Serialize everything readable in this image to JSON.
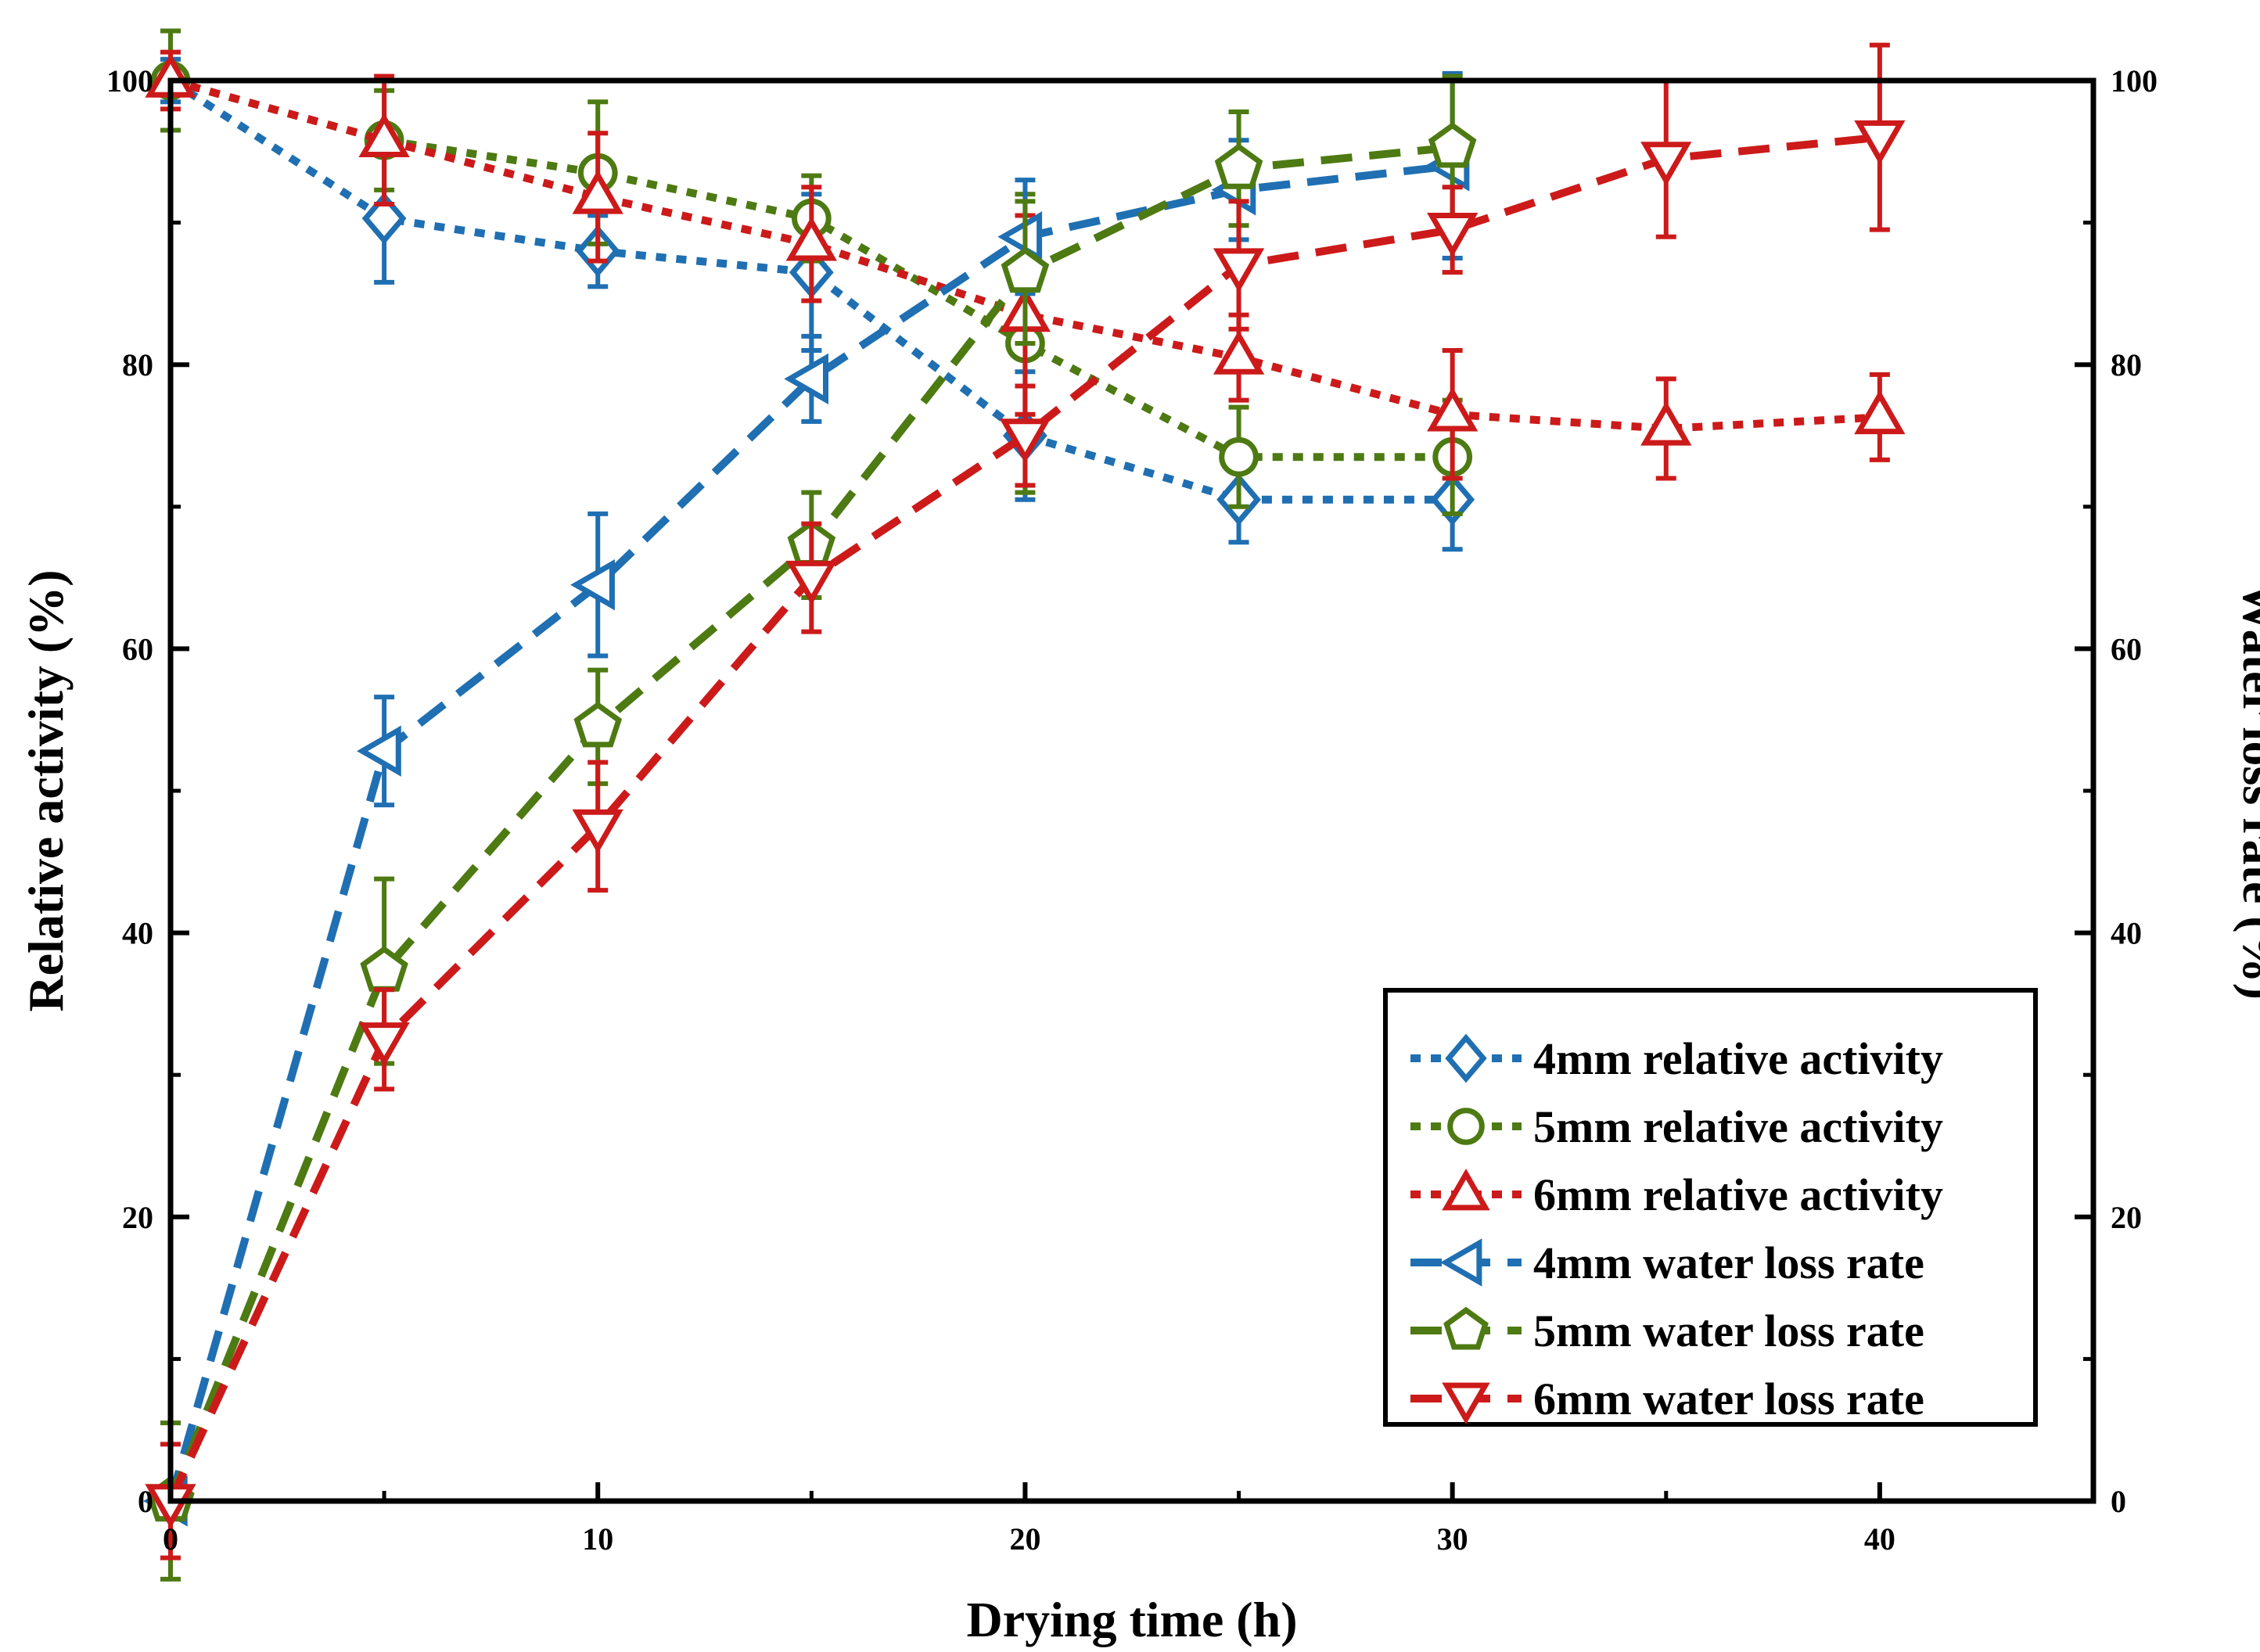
{
  "chart_data": {
    "type": "line",
    "xlabel": "Drying time (h)",
    "ylabel_left": "Relative activity (%)",
    "ylabel_right": "Water loss rate (%)",
    "xlim": [
      0,
      45
    ],
    "ylim_left": [
      0,
      100
    ],
    "ylim_right": [
      0,
      100
    ],
    "x_ticks": [
      0,
      10,
      20,
      30,
      40
    ],
    "y_ticks": [
      0,
      20,
      40,
      60,
      80,
      100
    ],
    "grid": false,
    "legend_position": "bottom-right",
    "series": [
      {
        "name": "4mm relative activity",
        "axis": "left",
        "color": "#1f6fb2",
        "marker": "diamond",
        "line": "dot",
        "x": [
          0,
          5,
          10,
          15,
          20,
          25,
          30
        ],
        "y": [
          100,
          90.3,
          88.0,
          86.5,
          75.0,
          70.5,
          70.5
        ],
        "err": [
          1.5,
          4.5,
          2.5,
          5.5,
          4.5,
          3.0,
          3.5
        ]
      },
      {
        "name": "5mm relative activity",
        "axis": "left",
        "color": "#4d7a12",
        "marker": "circle",
        "line": "dot",
        "x": [
          0,
          5,
          10,
          15,
          20,
          25,
          30
        ],
        "y": [
          100,
          95.8,
          93.5,
          90.3,
          81.5,
          73.5,
          73.5
        ],
        "err": [
          3.5,
          3.5,
          5.0,
          3.0,
          10.5,
          3.5,
          4.0
        ]
      },
      {
        "name": "6mm relative activity",
        "axis": "left",
        "color": "#cc1a1a",
        "marker": "triangle-up",
        "line": "dot",
        "x": [
          0,
          5,
          10,
          15,
          20,
          25,
          30,
          35,
          40
        ],
        "y": [
          100,
          95.8,
          91.8,
          88.5,
          83.5,
          80.5,
          76.5,
          75.5,
          76.3
        ],
        "err": [
          2.0,
          4.5,
          4.5,
          4.0,
          7.0,
          3.0,
          4.5,
          3.5,
          3.0
        ]
      },
      {
        "name": "4mm water loss rate",
        "axis": "right",
        "color": "#1f6fb2",
        "marker": "triangle-left",
        "line": "dash",
        "x": [
          0,
          5,
          10,
          15,
          20,
          25,
          30
        ],
        "y": [
          0,
          52.8,
          64.5,
          79.0,
          89.0,
          92.3,
          94.0
        ],
        "err": [
          0.5,
          3.8,
          5.0,
          3.0,
          4.0,
          3.5,
          6.5
        ]
      },
      {
        "name": "5mm water loss rate",
        "axis": "right",
        "color": "#4d7a12",
        "marker": "pentagon",
        "line": "dash",
        "x": [
          0,
          5,
          10,
          15,
          20,
          25,
          30
        ],
        "y": [
          0,
          37.3,
          54.5,
          67.3,
          86.5,
          93.8,
          95.3
        ],
        "err": [
          5.5,
          6.5,
          4.0,
          3.7,
          5.0,
          4.0,
          5.0
        ]
      },
      {
        "name": "6mm water loss rate",
        "axis": "right",
        "color": "#cc1a1a",
        "marker": "triangle-down",
        "line": "dash",
        "x": [
          0,
          5,
          10,
          15,
          20,
          25,
          30,
          35,
          40
        ],
        "y": [
          0,
          32.5,
          47.5,
          65.0,
          75.0,
          87.0,
          89.5,
          94.5,
          96.0
        ],
        "err": [
          4.0,
          3.5,
          4.5,
          3.8,
          3.5,
          4.5,
          3.0,
          5.5,
          6.5
        ]
      }
    ]
  }
}
